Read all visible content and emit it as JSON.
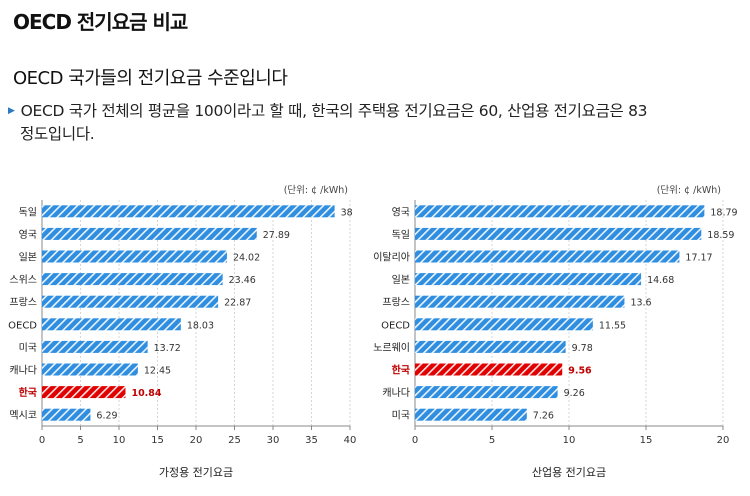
{
  "page": {
    "title": "OECD 전기요금 비교",
    "section_title": "OECD 국가들의 전기요금 수준입니다",
    "summary_line1": "OECD 국가 전체의 평균을 100이라고 할 때, 한국의 주택용 전기요금은 60, 산업용 전기요금은 83",
    "summary_line2": "정도입니다."
  },
  "colors": {
    "bar": "#2f8ee0",
    "highlight": "#e00000",
    "highlight_text": "#c00000"
  },
  "chart_data": [
    {
      "type": "bar",
      "orientation": "horizontal",
      "unit": "(단위: ¢ /kWh)",
      "xlabel": "가정용 전기요금",
      "xlim": [
        0,
        40
      ],
      "ticks": [
        0,
        5,
        10,
        15,
        20,
        25,
        30,
        35,
        40
      ],
      "grid": true,
      "highlight": "한국",
      "categories": [
        "독일",
        "영국",
        "일본",
        "스위스",
        "프랑스",
        "OECD",
        "미국",
        "캐나다",
        "한국",
        "멕시코"
      ],
      "values": [
        38,
        27.89,
        24.02,
        23.46,
        22.87,
        18.03,
        13.72,
        12.45,
        10.84,
        6.29
      ]
    },
    {
      "type": "bar",
      "orientation": "horizontal",
      "unit": "(단위: ¢ /kWh)",
      "xlabel": "산업용 전기요금",
      "xlim": [
        0,
        20
      ],
      "ticks": [
        0,
        5,
        10,
        15,
        20
      ],
      "grid": true,
      "highlight": "한국",
      "categories": [
        "영국",
        "독일",
        "이탈리아",
        "일본",
        "프랑스",
        "OECD",
        "노르웨이",
        "한국",
        "캐나다",
        "미국"
      ],
      "values": [
        18.79,
        18.59,
        17.17,
        14.68,
        13.6,
        11.55,
        9.78,
        9.56,
        9.26,
        7.26
      ]
    }
  ]
}
